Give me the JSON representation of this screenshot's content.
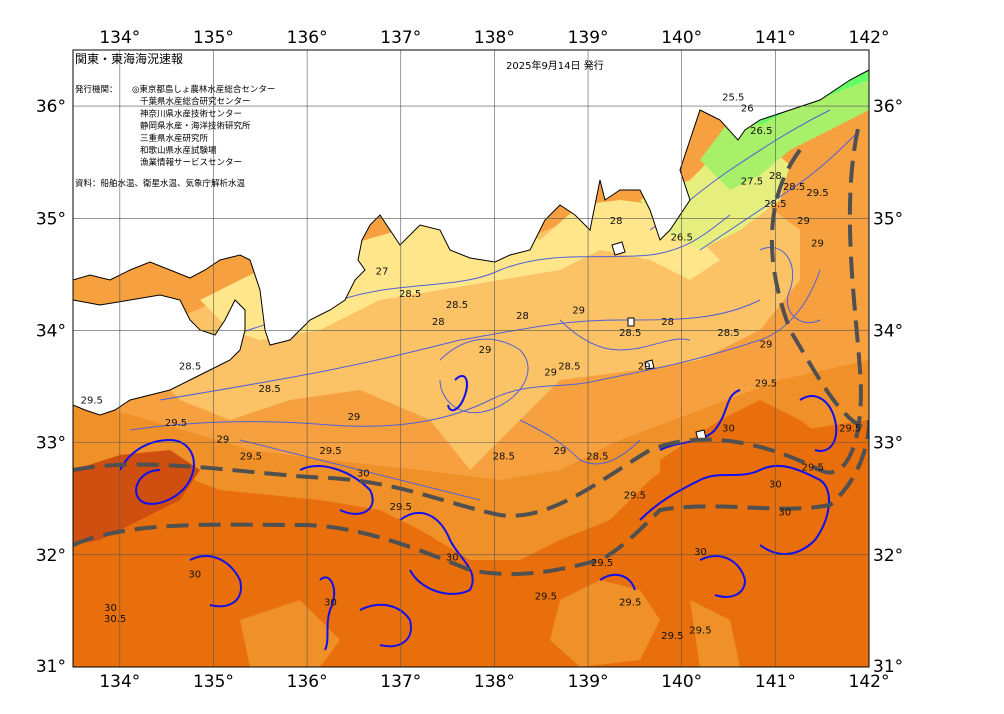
{
  "header": {
    "title": "関東・東海海況速報",
    "issue_date": "2025年9月14日 発行"
  },
  "issuers": {
    "label": "発行機関：",
    "items": [
      "◎東京都島しょ農林水産総合センター",
      "千葉県水産総合研究センター",
      "神奈川県水産技術センター",
      "静岡県水産・海洋技術研究所",
      "三重県水産研究所",
      "和歌山県水産試験場",
      "漁業情報サービスセンター"
    ]
  },
  "sources": "資料：船舶水温、衛星水温、気象庁解析水温",
  "axes": {
    "lon_labels": [
      "134°",
      "135°",
      "136°",
      "137°",
      "138°",
      "139°",
      "140°",
      "141°",
      "142°"
    ],
    "lat_labels": [
      "36°",
      "35°",
      "34°",
      "33°",
      "32°",
      "31°"
    ],
    "lon_range": [
      133.5,
      142
    ],
    "lat_range": [
      31,
      36.5
    ]
  },
  "isotherm_labels": [
    {
      "text": "25.5",
      "lon": 140.55,
      "lat": 36.05
    },
    {
      "text": "26",
      "lon": 140.7,
      "lat": 35.95
    },
    {
      "text": "26.5",
      "lon": 140.85,
      "lat": 35.75
    },
    {
      "text": "27.5",
      "lon": 140.75,
      "lat": 35.3
    },
    {
      "text": "28",
      "lon": 141.0,
      "lat": 35.35
    },
    {
      "text": "28.5",
      "lon": 141.2,
      "lat": 35.25
    },
    {
      "text": "28.5",
      "lon": 141.0,
      "lat": 35.1
    },
    {
      "text": "29",
      "lon": 141.3,
      "lat": 34.95
    },
    {
      "text": "29.5",
      "lon": 141.45,
      "lat": 35.2
    },
    {
      "text": "29",
      "lon": 141.45,
      "lat": 34.75
    },
    {
      "text": "28",
      "lon": 139.3,
      "lat": 34.95
    },
    {
      "text": "26.5",
      "lon": 140.0,
      "lat": 34.8
    },
    {
      "text": "27",
      "lon": 136.8,
      "lat": 34.5
    },
    {
      "text": "28.5",
      "lon": 137.1,
      "lat": 34.3
    },
    {
      "text": "28",
      "lon": 137.4,
      "lat": 34.05
    },
    {
      "text": "28.5",
      "lon": 137.6,
      "lat": 34.2
    },
    {
      "text": "28",
      "lon": 138.3,
      "lat": 34.1
    },
    {
      "text": "29",
      "lon": 138.9,
      "lat": 34.15
    },
    {
      "text": "28",
      "lon": 139.85,
      "lat": 34.05
    },
    {
      "text": "28.5",
      "lon": 139.45,
      "lat": 33.95
    },
    {
      "text": "28.5",
      "lon": 140.5,
      "lat": 33.95
    },
    {
      "text": "29",
      "lon": 140.9,
      "lat": 33.85
    },
    {
      "text": "28.5",
      "lon": 134.75,
      "lat": 33.65
    },
    {
      "text": "29",
      "lon": 137.9,
      "lat": 33.8
    },
    {
      "text": "29",
      "lon": 138.6,
      "lat": 33.6
    },
    {
      "text": "28.5",
      "lon": 138.8,
      "lat": 33.65
    },
    {
      "text": "29",
      "lon": 139.6,
      "lat": 33.65
    },
    {
      "text": "28.5",
      "lon": 135.6,
      "lat": 33.45
    },
    {
      "text": "29",
      "lon": 136.5,
      "lat": 33.2
    },
    {
      "text": "29.5",
      "lon": 140.9,
      "lat": 33.5
    },
    {
      "text": "29.5",
      "lon": 133.7,
      "lat": 33.35
    },
    {
      "text": "29.5",
      "lon": 134.6,
      "lat": 33.15
    },
    {
      "text": "29",
      "lon": 135.1,
      "lat": 33.0
    },
    {
      "text": "29.5",
      "lon": 135.4,
      "lat": 32.85
    },
    {
      "text": "29",
      "lon": 138.7,
      "lat": 32.9
    },
    {
      "text": "28.5",
      "lon": 138.1,
      "lat": 32.85
    },
    {
      "text": "29.5",
      "lon": 136.25,
      "lat": 32.9
    },
    {
      "text": "30",
      "lon": 136.6,
      "lat": 32.7
    },
    {
      "text": "28.5",
      "lon": 139.1,
      "lat": 32.85
    },
    {
      "text": "29.5",
      "lon": 141.4,
      "lat": 32.75
    },
    {
      "text": "29.5",
      "lon": 141.8,
      "lat": 33.1
    },
    {
      "text": "30",
      "lon": 140.5,
      "lat": 33.1
    },
    {
      "text": "30",
      "lon": 141.0,
      "lat": 32.6
    },
    {
      "text": "30",
      "lon": 141.1,
      "lat": 32.35
    },
    {
      "text": "29.5",
      "lon": 139.5,
      "lat": 32.5
    },
    {
      "text": "29.5",
      "lon": 137.0,
      "lat": 32.4
    },
    {
      "text": "30",
      "lon": 137.55,
      "lat": 31.95
    },
    {
      "text": "29.5",
      "lon": 139.15,
      "lat": 31.9
    },
    {
      "text": "30",
      "lon": 140.2,
      "lat": 32.0
    },
    {
      "text": "29.5",
      "lon": 138.55,
      "lat": 31.6
    },
    {
      "text": "29.5",
      "lon": 139.45,
      "lat": 31.55
    },
    {
      "text": "29.5",
      "lon": 139.9,
      "lat": 31.25
    },
    {
      "text": "29.5",
      "lon": 140.2,
      "lat": 31.3
    },
    {
      "text": "30",
      "lon": 134.8,
      "lat": 31.8
    },
    {
      "text": "30",
      "lon": 133.9,
      "lat": 31.5
    },
    {
      "text": "30.5",
      "lon": 133.95,
      "lat": 31.4
    },
    {
      "text": "30",
      "lon": 136.25,
      "lat": 31.55
    }
  ],
  "colors": {
    "land": "#ffffff",
    "sst_24": "#66ff66",
    "sst_25": "#a8ef6a",
    "sst_26": "#e6ee7e",
    "sst_27": "#ffe68a",
    "sst_28": "#fcc266",
    "sst_29": "#f7a040",
    "sst_295": "#f09029",
    "sst_30": "#e86f0c",
    "sst_305": "#cf4f10",
    "isotherm": "#5060d8",
    "isotherm_30": "#1010ee",
    "kuroshio_axis": "#505050",
    "grid": "#555555"
  }
}
